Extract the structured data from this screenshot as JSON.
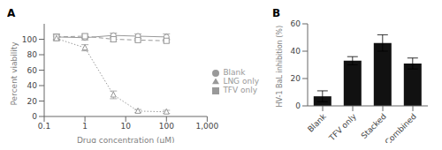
{
  "chart_data": [
    {
      "type": "line",
      "title": "A",
      "xlabel": "Drug concentration (μM)",
      "ylabel": "Percent viability",
      "log": "x",
      "xlim": [
        0.1,
        1000
      ],
      "ylim": [
        0,
        120
      ],
      "xticks": [
        0.1,
        1,
        10,
        100,
        {
          "value": 1000,
          "label": "1,000"
        }
      ],
      "yticks": [
        0,
        20,
        40,
        60,
        80,
        100
      ],
      "legend": "right",
      "series": [
        {
          "name": "Blank",
          "color": "#999999",
          "marker": "circle",
          "line_style": "solid",
          "x": [
            0.2,
            1,
            5,
            20,
            100
          ],
          "values": [
            103,
            102,
            105,
            104,
            103
          ],
          "yerr": [
            4,
            3,
            3,
            3,
            4
          ]
        },
        {
          "name": "TFV only",
          "color": "#999999",
          "marker": "square",
          "line_style": "dashed",
          "x": [
            0.2,
            1,
            5,
            20,
            100
          ],
          "values": [
            103,
            104,
            100,
            99,
            98
          ],
          "yerr": [
            3,
            3,
            3,
            2,
            2
          ]
        },
        {
          "name": "LNG only",
          "color": "#999999",
          "marker": "triangle",
          "line_style": "dotted",
          "x": [
            0.2,
            1,
            5,
            20,
            100
          ],
          "values": [
            101,
            89,
            28,
            7,
            6
          ],
          "yerr": [
            3,
            4,
            5,
            2,
            2
          ]
        }
      ]
    },
    {
      "type": "bar",
      "title": "B",
      "ylabel": "HV-1 BaL inhibition (%)",
      "categories": [
        "Blank",
        "TFV only",
        "Stacked",
        "Combined"
      ],
      "values": [
        7,
        33,
        46,
        31
      ],
      "yerr": [
        4,
        3,
        6,
        4
      ],
      "color": "#111111",
      "ylim": [
        0,
        60
      ],
      "yticks": [
        0,
        20,
        40,
        60
      ]
    }
  ]
}
